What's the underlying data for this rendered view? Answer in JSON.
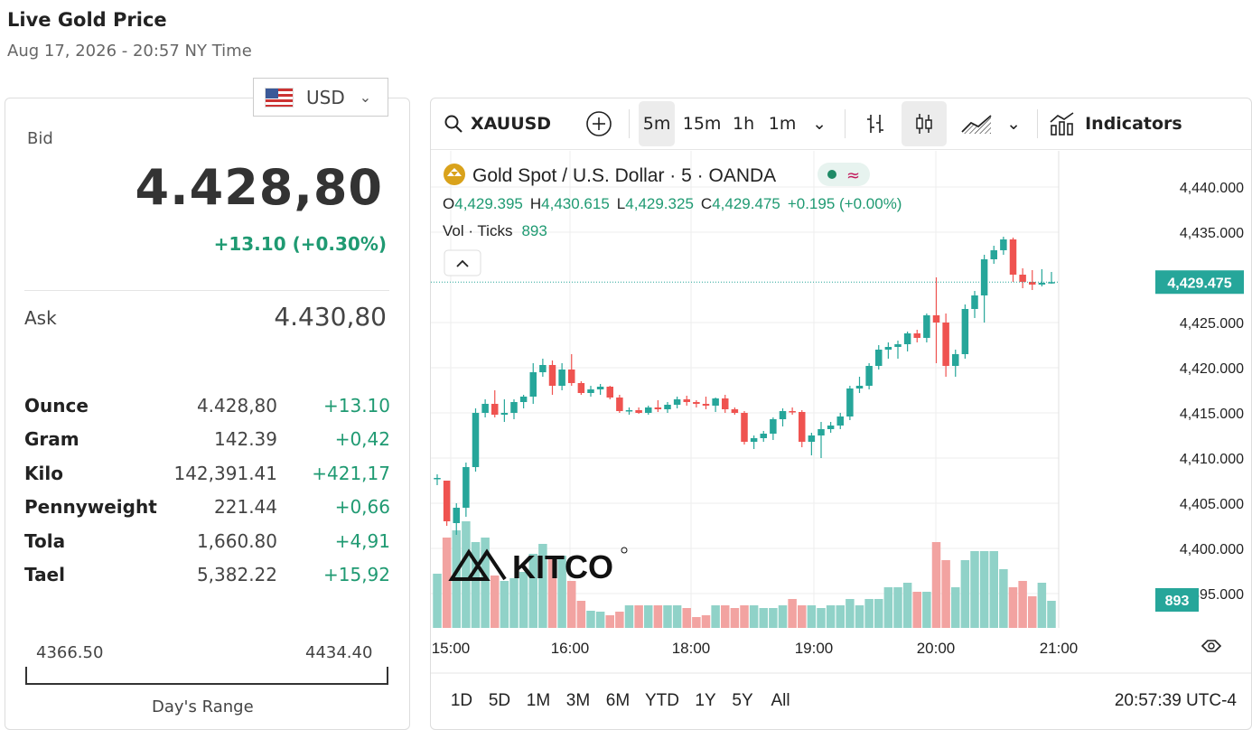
{
  "header": {
    "title": "Live Gold Price",
    "subtitle": "Aug 17, 2026 - 20:57 NY Time"
  },
  "currency": {
    "label": "USD"
  },
  "bid": {
    "label": "Bid",
    "value": "4.428,80",
    "change": "+13.10 (+0.30%)"
  },
  "ask": {
    "label": "Ask",
    "value": "4.430,80"
  },
  "units": [
    {
      "name": "Ounce",
      "value": "4.428,80",
      "change": "+13.10"
    },
    {
      "name": "Gram",
      "value": "142.39",
      "change": "+0,42"
    },
    {
      "name": "Kilo",
      "value": "142,391.41",
      "change": "+421,17"
    },
    {
      "name": "Pennyweight",
      "value": "221.44",
      "change": "+0,66"
    },
    {
      "name": "Tola",
      "value": "1,660.80",
      "change": "+4,91"
    },
    {
      "name": "Tael",
      "value": "5,382.22",
      "change": "+15,92"
    }
  ],
  "range": {
    "low": "4366.50",
    "high": "4434.40",
    "label": "Day's Range"
  },
  "toolbar": {
    "symbol": "XAUUSD",
    "intervals": [
      "5m",
      "15m",
      "1h",
      "1m"
    ],
    "active_interval": "5m",
    "indicators_label": "Indicators"
  },
  "chart_header": {
    "name": "Gold Spot",
    "separator": "/",
    "quote": "U.S. Dollar",
    "interval": "5",
    "source": "OANDA",
    "o_label": "O",
    "o": "4,429.395",
    "h_label": "H",
    "h": "4,430.615",
    "l_label": "L",
    "l": "4,429.325",
    "c_label": "C",
    "c": "4,429.475",
    "change": "+0.195 (+0.00%)",
    "vol_label": "Vol · Ticks",
    "vol": "893",
    "approx_symbol": "≈"
  },
  "timeframes": [
    "1D",
    "5D",
    "1M",
    "3M",
    "6M",
    "YTD",
    "1Y",
    "5Y",
    "All"
  ],
  "clock": "20:57:39 UTC-4",
  "logo_text": "KITCO",
  "colors": {
    "up": "#26a69a",
    "down": "#ef5350",
    "up_vol": "#90d2c8",
    "down_vol": "#f2a3a1",
    "accent_green": "#1f9a72"
  },
  "chart_data": {
    "type": "candlestick",
    "y_ticks": [
      "4,440.000",
      "4,435.000",
      "4,425.000",
      "4,420.000",
      "4,415.000",
      "4,410.000",
      "4,405.000",
      "4,400.000",
      "4,395.000"
    ],
    "x_ticks": [
      "15:00",
      "16:00",
      "18:00",
      "19:00",
      "20:00",
      "21:00"
    ],
    "last_price": "4,429.475",
    "last_volume": "893",
    "ylim": [
      4390,
      4443
    ],
    "candles": [
      [
        4407.8,
        4408.2,
        4407.0,
        4407.8
      ],
      [
        4407.5,
        4407.5,
        4402.5,
        4403.0
      ],
      [
        4402.8,
        4405.0,
        4401.5,
        4404.5
      ],
      [
        4404.5,
        4409.5,
        4403.5,
        4409.0
      ],
      [
        4409.0,
        4415.5,
        4408.5,
        4415.0
      ],
      [
        4415.0,
        4416.5,
        4414.5,
        4416.0
      ],
      [
        4416.0,
        4417.5,
        4414.5,
        4414.8
      ],
      [
        4414.8,
        4416.5,
        4414.0,
        4415.0
      ],
      [
        4415.0,
        4416.5,
        4414.3,
        4416.2
      ],
      [
        4416.2,
        4417.0,
        4415.5,
        4416.8
      ],
      [
        4416.8,
        4420.5,
        4416.0,
        4419.5
      ],
      [
        4419.5,
        4421.0,
        4419.0,
        4420.3
      ],
      [
        4420.3,
        4420.8,
        4417.0,
        4418.0
      ],
      [
        4418.0,
        4420.5,
        4417.5,
        4419.8
      ],
      [
        4419.8,
        4421.5,
        4418.0,
        4418.3
      ],
      [
        4418.3,
        4418.5,
        4417.0,
        4417.2
      ],
      [
        4417.2,
        4418.0,
        4416.8,
        4417.6
      ],
      [
        4417.6,
        4418.2,
        4417.0,
        4417.9
      ],
      [
        4417.9,
        4418.0,
        4416.5,
        4416.7
      ],
      [
        4416.7,
        4417.0,
        4415.0,
        4415.2
      ],
      [
        4415.2,
        4415.6,
        4414.8,
        4415.3
      ],
      [
        4415.3,
        4415.6,
        4414.9,
        4415.0
      ],
      [
        4415.0,
        4415.8,
        4414.8,
        4415.6
      ],
      [
        4415.6,
        4416.4,
        4415.1,
        4415.4
      ],
      [
        4415.4,
        4416.2,
        4415.0,
        4415.9
      ],
      [
        4415.9,
        4416.8,
        4415.5,
        4416.5
      ],
      [
        4416.5,
        4416.9,
        4415.8,
        4416.2
      ],
      [
        4416.2,
        4416.4,
        4415.6,
        4416.0
      ],
      [
        4416.0,
        4416.8,
        4415.4,
        4415.8
      ],
      [
        4415.8,
        4416.7,
        4415.1,
        4416.6
      ],
      [
        4416.6,
        4417.0,
        4415.0,
        4415.4
      ],
      [
        4415.4,
        4415.6,
        4414.8,
        4415.0
      ],
      [
        4415.0,
        4415.2,
        4411.5,
        4411.8
      ],
      [
        4411.8,
        4412.5,
        4411.0,
        4412.2
      ],
      [
        4412.2,
        4413.0,
        4411.8,
        4412.7
      ],
      [
        4412.7,
        4414.5,
        4412.0,
        4414.3
      ],
      [
        4414.3,
        4415.5,
        4413.5,
        4415.2
      ],
      [
        4415.2,
        4415.6,
        4414.8,
        4415.1
      ],
      [
        4415.1,
        4415.3,
        4411.2,
        4411.8
      ],
      [
        4411.8,
        4412.8,
        4410.3,
        4412.5
      ],
      [
        4412.5,
        4414.0,
        4410.0,
        4413.2
      ],
      [
        4413.2,
        4414.0,
        4412.8,
        4413.6
      ],
      [
        4413.6,
        4415.0,
        4413.2,
        4414.6
      ],
      [
        4414.6,
        4418.0,
        4414.2,
        4417.7
      ],
      [
        4417.7,
        4419.0,
        4417.2,
        4418.0
      ],
      [
        4418.0,
        4420.5,
        4417.6,
        4420.2
      ],
      [
        4420.2,
        4422.5,
        4419.8,
        4422.0
      ],
      [
        4422.0,
        4422.8,
        4421.0,
        4422.3
      ],
      [
        4422.3,
        4423.0,
        4421.0,
        4422.6
      ],
      [
        4422.6,
        4424.0,
        4421.8,
        4423.8
      ],
      [
        4423.8,
        4424.2,
        4422.8,
        4423.3
      ],
      [
        4423.3,
        4426.0,
        4422.8,
        4425.8
      ],
      [
        4425.8,
        4430.0,
        4420.5,
        4425.0
      ],
      [
        4425.0,
        4426.0,
        4419.0,
        4420.2
      ],
      [
        4420.2,
        4422.0,
        4419.0,
        4421.5
      ],
      [
        4421.5,
        4427.0,
        4421.0,
        4426.5
      ],
      [
        4426.5,
        4428.5,
        4425.5,
        4428.0
      ],
      [
        4428.0,
        4432.5,
        4425.0,
        4432.0
      ],
      [
        4432.0,
        4433.5,
        4431.5,
        4433.0
      ],
      [
        4433.0,
        4434.5,
        4432.5,
        4434.2
      ],
      [
        4434.2,
        4434.4,
        4429.5,
        4430.3
      ],
      [
        4430.3,
        4431.0,
        4428.8,
        4429.5
      ],
      [
        4429.5,
        4430.8,
        4428.6,
        4429.2
      ],
      [
        4429.2,
        4430.9,
        4429.0,
        4429.4
      ],
      [
        4429.4,
        4430.6,
        4429.3,
        4429.475
      ]
    ],
    "volumes": [
      60,
      100,
      108,
      118,
      95,
      100,
      58,
      52,
      55,
      62,
      82,
      93,
      76,
      80,
      52,
      30,
      19,
      18,
      14,
      18,
      25,
      25,
      25,
      25,
      25,
      25,
      22,
      12,
      14,
      25,
      25,
      22,
      25,
      25,
      22,
      22,
      25,
      32,
      25,
      25,
      22,
      25,
      25,
      32,
      25,
      32,
      32,
      45,
      45,
      50,
      40,
      40,
      95,
      75,
      45,
      75,
      85,
      85,
      85,
      65,
      45,
      52,
      35,
      50,
      30
    ]
  }
}
